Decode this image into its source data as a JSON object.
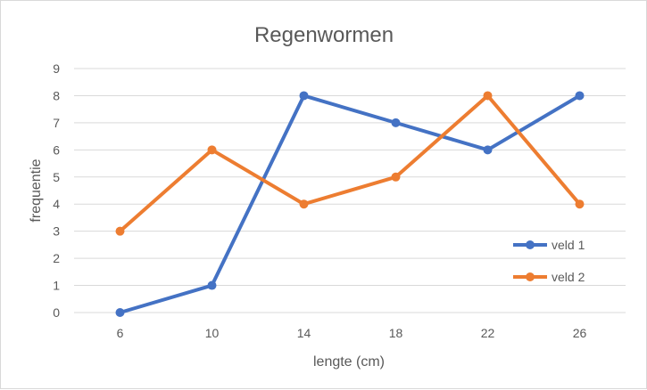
{
  "chart_data": {
    "type": "line",
    "title": "Regenwormen",
    "xlabel": "lengte (cm)",
    "ylabel": "frequentie",
    "categories": [
      "6",
      "10",
      "14",
      "18",
      "22",
      "26"
    ],
    "ylim": [
      0,
      9
    ],
    "yticks": [
      "0",
      "1",
      "2",
      "3",
      "4",
      "5",
      "6",
      "7",
      "8",
      "9"
    ],
    "grid": true,
    "legend_position": "right",
    "series": [
      {
        "name": "veld 1",
        "values": [
          0,
          1,
          8,
          7,
          6,
          8
        ],
        "color": "#4472c4"
      },
      {
        "name": "veld 2",
        "values": [
          3,
          6,
          4,
          5,
          8,
          4
        ],
        "color": "#ed7d31"
      }
    ]
  }
}
